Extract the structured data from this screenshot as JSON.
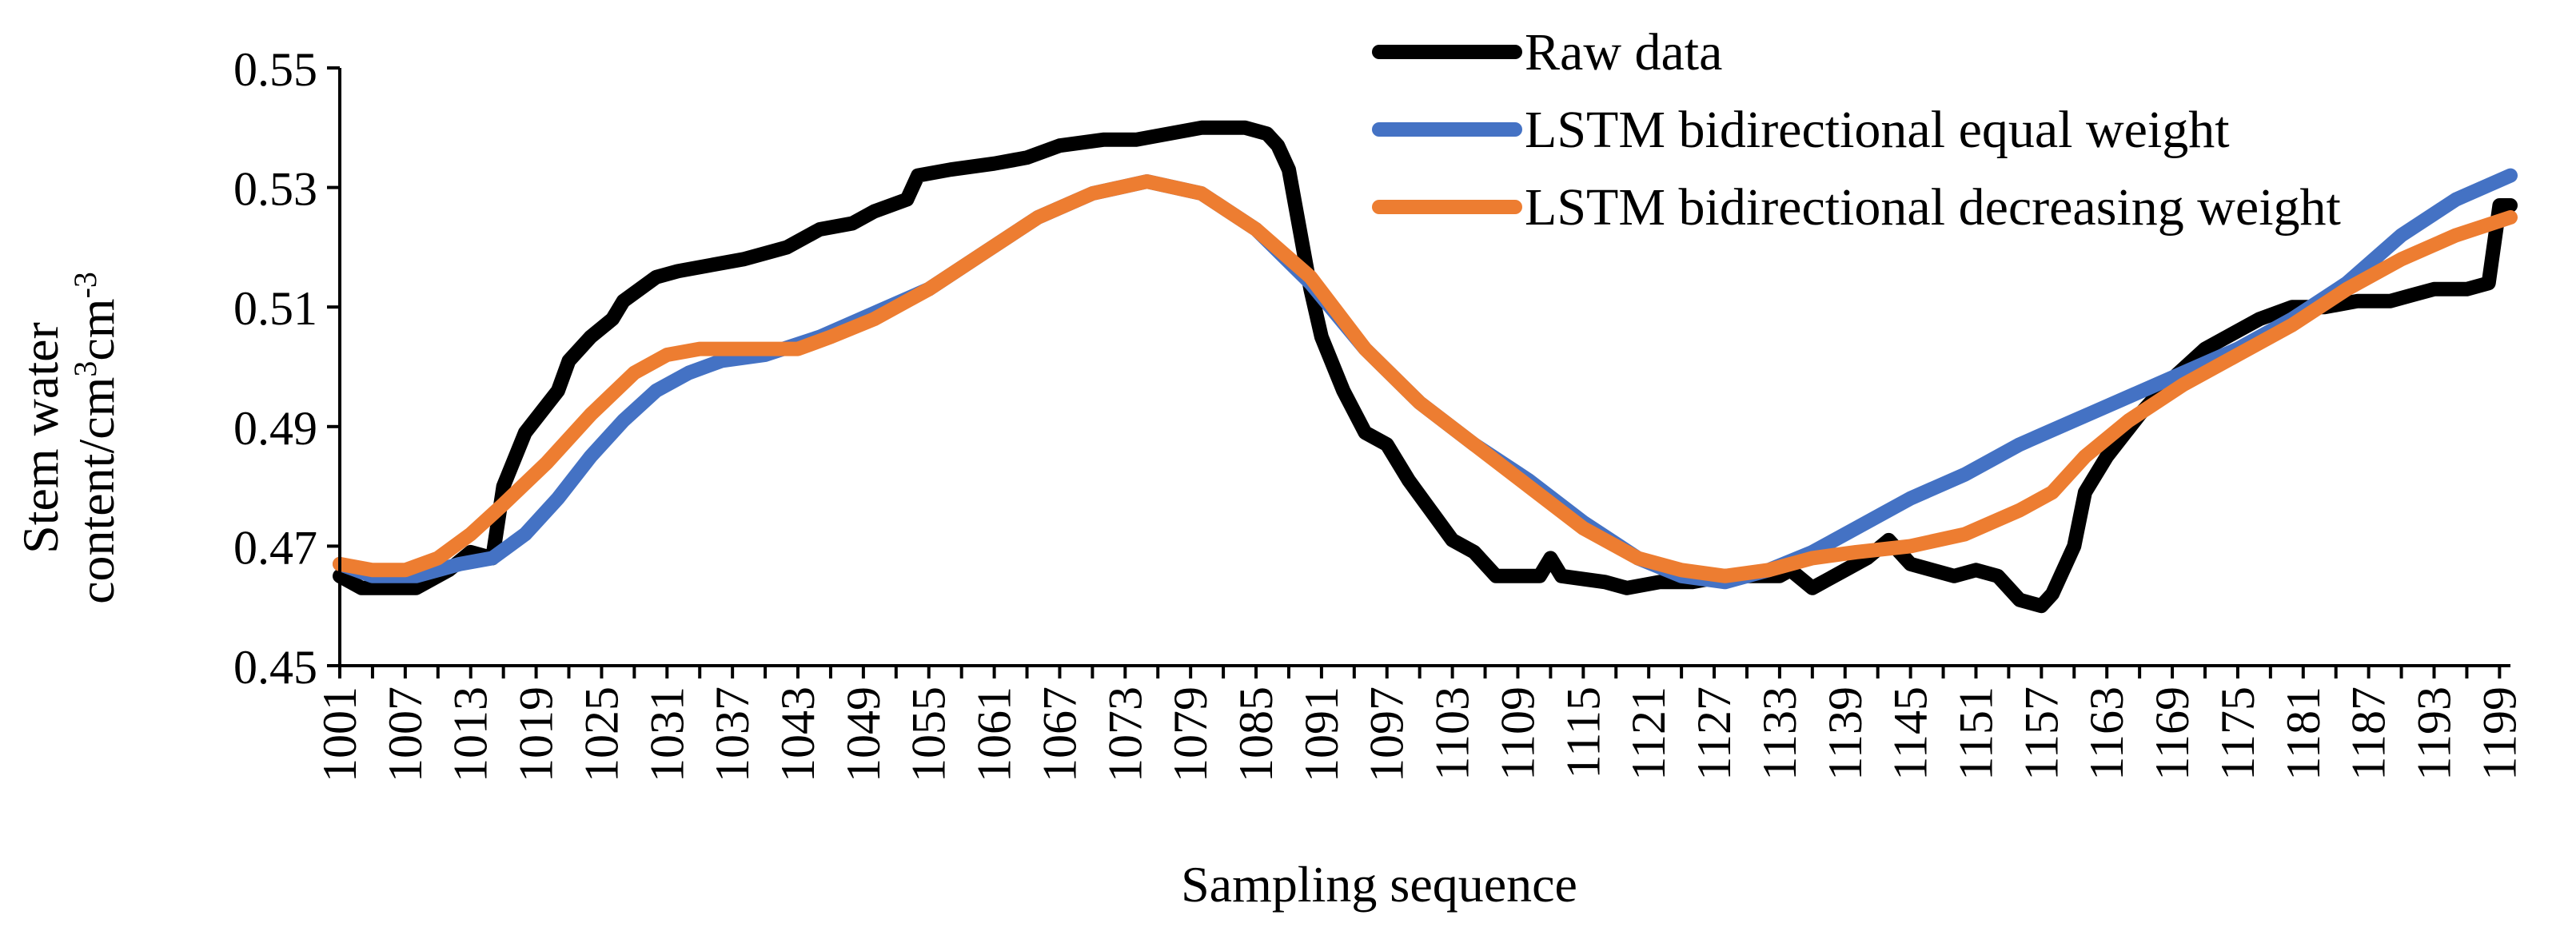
{
  "chart_data": {
    "type": "line",
    "title": "",
    "xlabel": "Sampling sequence",
    "ylabel_lines": [
      "Stem water",
      "content/cm"
    ],
    "ylabel_units": {
      "base": "content/cm",
      "sup1": "3",
      "mid": "cm",
      "sup2": "-3"
    },
    "ylim": [
      0.45,
      0.55
    ],
    "xlim": [
      1001,
      1200
    ],
    "yticks": [
      "0.45",
      "0.47",
      "0.49",
      "0.51",
      "0.53",
      "0.55"
    ],
    "xticks": [
      "1001",
      "1007",
      "1013",
      "1019",
      "1025",
      "1031",
      "1037",
      "1043",
      "1049",
      "1055",
      "1061",
      "1067",
      "1073",
      "1079",
      "1085",
      "1091",
      "1097",
      "1103",
      "1109",
      "1115",
      "1121",
      "1127",
      "1133",
      "1139",
      "1145",
      "1151",
      "1157",
      "1163",
      "1169",
      "1175",
      "1181",
      "1187",
      "1193",
      "1199"
    ],
    "legend_position": "top-right",
    "series": [
      {
        "name": "Raw data",
        "color": "#000000",
        "points": [
          [
            1001,
            0.465
          ],
          [
            1003,
            0.463
          ],
          [
            1005,
            0.463
          ],
          [
            1008,
            0.463
          ],
          [
            1011,
            0.466
          ],
          [
            1013,
            0.469
          ],
          [
            1015,
            0.468
          ],
          [
            1016,
            0.48
          ],
          [
            1018,
            0.489
          ],
          [
            1021,
            0.496
          ],
          [
            1022,
            0.501
          ],
          [
            1024,
            0.505
          ],
          [
            1026,
            0.508
          ],
          [
            1027,
            0.511
          ],
          [
            1030,
            0.515
          ],
          [
            1032,
            0.516
          ],
          [
            1035,
            0.517
          ],
          [
            1038,
            0.518
          ],
          [
            1042,
            0.52
          ],
          [
            1045,
            0.523
          ],
          [
            1048,
            0.524
          ],
          [
            1050,
            0.526
          ],
          [
            1053,
            0.528
          ],
          [
            1054,
            0.532
          ],
          [
            1057,
            0.533
          ],
          [
            1061,
            0.534
          ],
          [
            1064,
            0.535
          ],
          [
            1067,
            0.537
          ],
          [
            1071,
            0.538
          ],
          [
            1074,
            0.538
          ],
          [
            1077,
            0.539
          ],
          [
            1080,
            0.54
          ],
          [
            1082,
            0.54
          ],
          [
            1084,
            0.54
          ],
          [
            1086,
            0.539
          ],
          [
            1087,
            0.537
          ],
          [
            1088,
            0.533
          ],
          [
            1089,
            0.523
          ],
          [
            1090,
            0.513
          ],
          [
            1091,
            0.505
          ],
          [
            1093,
            0.496
          ],
          [
            1095,
            0.489
          ],
          [
            1097,
            0.487
          ],
          [
            1099,
            0.481
          ],
          [
            1101,
            0.476
          ],
          [
            1103,
            0.471
          ],
          [
            1105,
            0.469
          ],
          [
            1107,
            0.465
          ],
          [
            1111,
            0.465
          ],
          [
            1112,
            0.468
          ],
          [
            1113,
            0.465
          ],
          [
            1117,
            0.464
          ],
          [
            1119,
            0.463
          ],
          [
            1122,
            0.464
          ],
          [
            1125,
            0.464
          ],
          [
            1128,
            0.465
          ],
          [
            1130,
            0.465
          ],
          [
            1133,
            0.465
          ],
          [
            1134,
            0.466
          ],
          [
            1136,
            0.463
          ],
          [
            1139,
            0.466
          ],
          [
            1141,
            0.468
          ],
          [
            1143,
            0.471
          ],
          [
            1145,
            0.467
          ],
          [
            1147,
            0.466
          ],
          [
            1149,
            0.465
          ],
          [
            1151,
            0.466
          ],
          [
            1153,
            0.465
          ],
          [
            1155,
            0.461
          ],
          [
            1157,
            0.46
          ],
          [
            1158,
            0.462
          ],
          [
            1160,
            0.47
          ],
          [
            1161,
            0.479
          ],
          [
            1163,
            0.485
          ],
          [
            1166,
            0.492
          ],
          [
            1169,
            0.498
          ],
          [
            1172,
            0.503
          ],
          [
            1175,
            0.506
          ],
          [
            1177,
            0.508
          ],
          [
            1180,
            0.51
          ],
          [
            1183,
            0.51
          ],
          [
            1186,
            0.511
          ],
          [
            1189,
            0.511
          ],
          [
            1191,
            0.512
          ],
          [
            1193,
            0.513
          ],
          [
            1196,
            0.513
          ],
          [
            1198,
            0.514
          ],
          [
            1199,
            0.527
          ],
          [
            1200,
            0.527
          ]
        ]
      },
      {
        "name": "LSTM bidirectional equal weight",
        "color": "#4472C4",
        "points": [
          [
            1001,
            0.467
          ],
          [
            1004,
            0.465
          ],
          [
            1008,
            0.465
          ],
          [
            1012,
            0.467
          ],
          [
            1015,
            0.468
          ],
          [
            1018,
            0.472
          ],
          [
            1021,
            0.478
          ],
          [
            1024,
            0.485
          ],
          [
            1027,
            0.491
          ],
          [
            1030,
            0.496
          ],
          [
            1033,
            0.499
          ],
          [
            1036,
            0.501
          ],
          [
            1040,
            0.502
          ],
          [
            1045,
            0.505
          ],
          [
            1050,
            0.509
          ],
          [
            1055,
            0.513
          ],
          [
            1060,
            0.519
          ],
          [
            1065,
            0.525
          ],
          [
            1070,
            0.529
          ],
          [
            1075,
            0.531
          ],
          [
            1080,
            0.529
          ],
          [
            1085,
            0.523
          ],
          [
            1090,
            0.514
          ],
          [
            1095,
            0.503
          ],
          [
            1100,
            0.494
          ],
          [
            1105,
            0.487
          ],
          [
            1110,
            0.481
          ],
          [
            1115,
            0.474
          ],
          [
            1120,
            0.468
          ],
          [
            1124,
            0.465
          ],
          [
            1128,
            0.464
          ],
          [
            1132,
            0.466
          ],
          [
            1136,
            0.469
          ],
          [
            1140,
            0.473
          ],
          [
            1145,
            0.478
          ],
          [
            1150,
            0.482
          ],
          [
            1155,
            0.487
          ],
          [
            1160,
            0.491
          ],
          [
            1165,
            0.495
          ],
          [
            1170,
            0.499
          ],
          [
            1175,
            0.503
          ],
          [
            1180,
            0.508
          ],
          [
            1185,
            0.514
          ],
          [
            1190,
            0.522
          ],
          [
            1195,
            0.528
          ],
          [
            1200,
            0.532
          ]
        ]
      },
      {
        "name": "LSTM bidirectional decreasing weight",
        "color": "#ED7D31",
        "points": [
          [
            1001,
            0.467
          ],
          [
            1004,
            0.466
          ],
          [
            1007,
            0.466
          ],
          [
            1010,
            0.468
          ],
          [
            1013,
            0.472
          ],
          [
            1016,
            0.477
          ],
          [
            1020,
            0.484
          ],
          [
            1024,
            0.492
          ],
          [
            1028,
            0.499
          ],
          [
            1031,
            0.502
          ],
          [
            1034,
            0.503
          ],
          [
            1037,
            0.503
          ],
          [
            1040,
            0.503
          ],
          [
            1043,
            0.503
          ],
          [
            1046,
            0.505
          ],
          [
            1050,
            0.508
          ],
          [
            1055,
            0.513
          ],
          [
            1060,
            0.519
          ],
          [
            1065,
            0.525
          ],
          [
            1070,
            0.529
          ],
          [
            1075,
            0.531
          ],
          [
            1080,
            0.529
          ],
          [
            1085,
            0.523
          ],
          [
            1090,
            0.515
          ],
          [
            1095,
            0.503
          ],
          [
            1100,
            0.494
          ],
          [
            1105,
            0.487
          ],
          [
            1110,
            0.48
          ],
          [
            1115,
            0.473
          ],
          [
            1120,
            0.468
          ],
          [
            1124,
            0.466
          ],
          [
            1128,
            0.465
          ],
          [
            1132,
            0.466
          ],
          [
            1136,
            0.468
          ],
          [
            1140,
            0.469
          ],
          [
            1145,
            0.47
          ],
          [
            1150,
            0.472
          ],
          [
            1155,
            0.476
          ],
          [
            1158,
            0.479
          ],
          [
            1161,
            0.485
          ],
          [
            1165,
            0.491
          ],
          [
            1170,
            0.497
          ],
          [
            1175,
            0.502
          ],
          [
            1180,
            0.507
          ],
          [
            1185,
            0.513
          ],
          [
            1190,
            0.518
          ],
          [
            1195,
            0.522
          ],
          [
            1200,
            0.525
          ]
        ]
      }
    ]
  }
}
